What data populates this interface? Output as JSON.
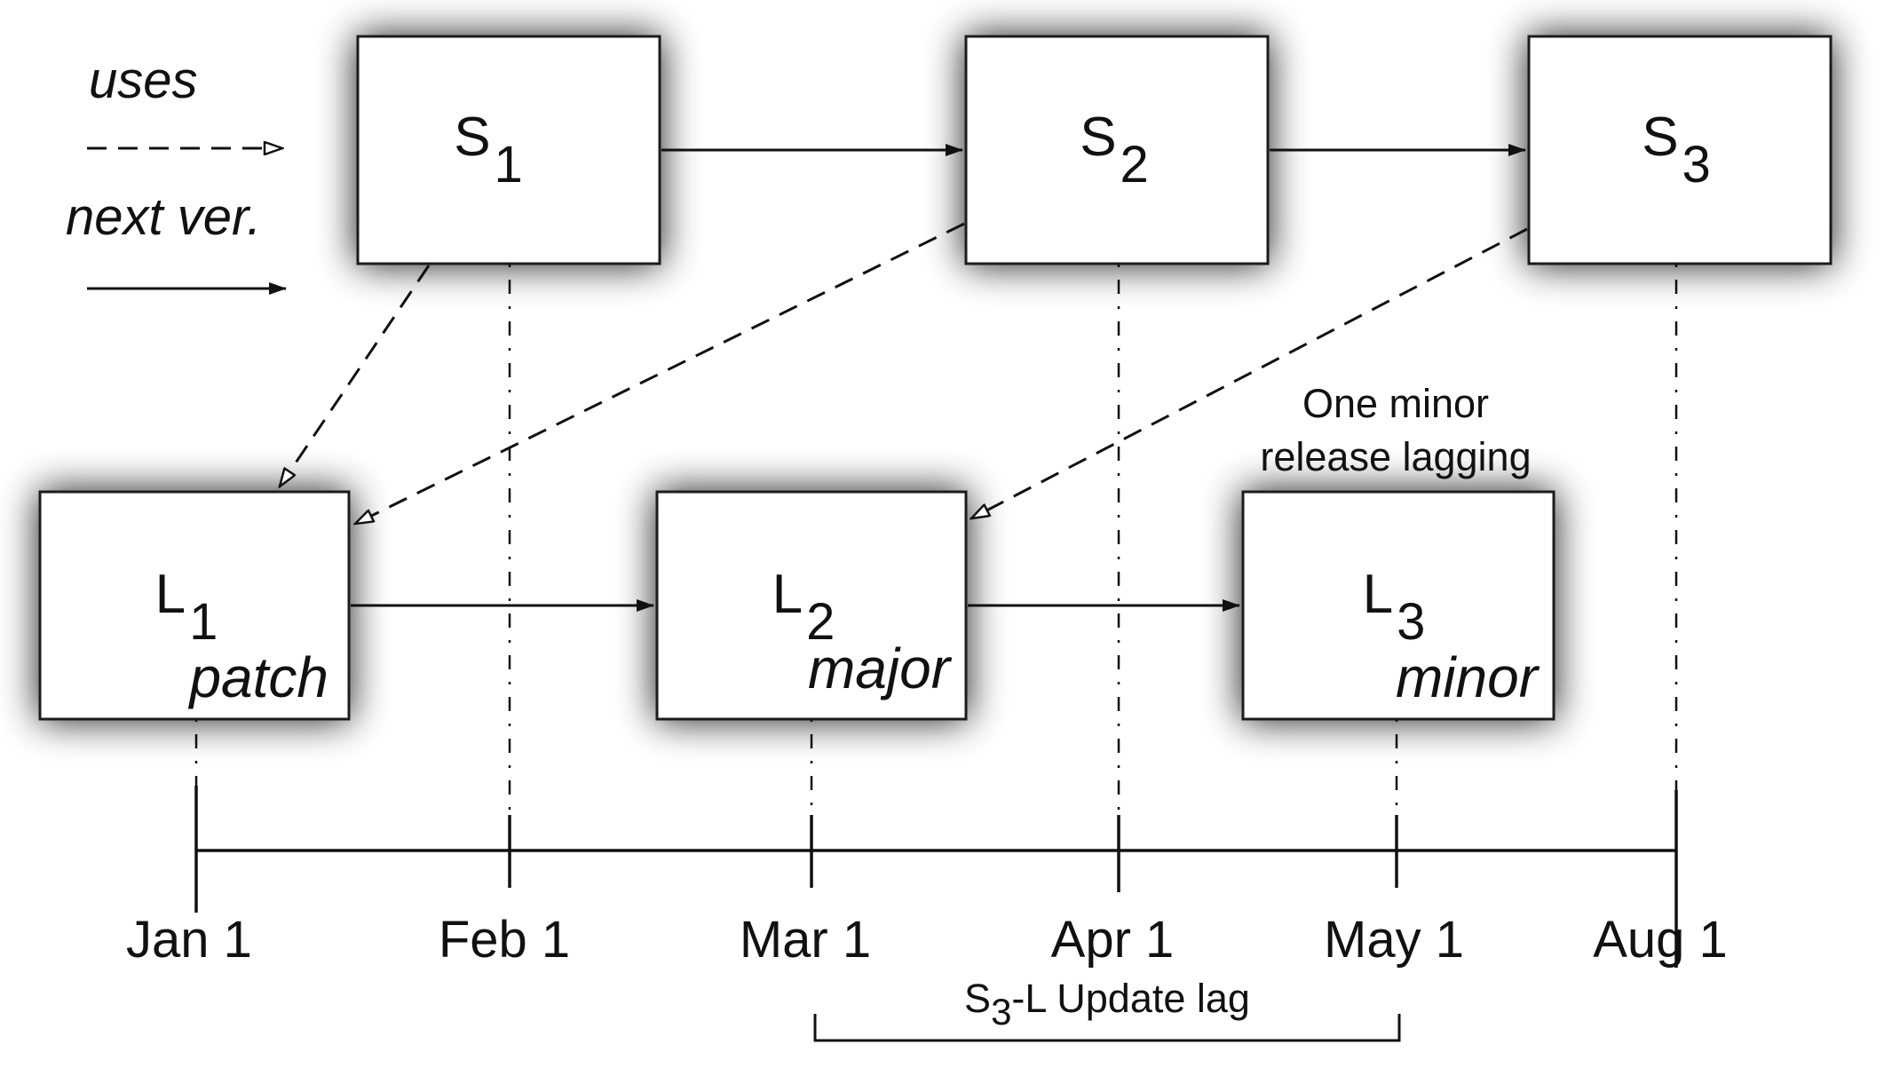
{
  "legend": {
    "uses_label": "uses",
    "next_label": "next ver."
  },
  "nodes": {
    "s1": {
      "main": "S",
      "sub": "1"
    },
    "s2": {
      "main": "S",
      "sub": "2"
    },
    "s3": {
      "main": "S",
      "sub": "3"
    },
    "l1": {
      "main": "L",
      "sub": "1",
      "type": "patch"
    },
    "l2": {
      "main": "L",
      "sub": "2",
      "type": "major"
    },
    "l3": {
      "main": "L",
      "sub": "3",
      "type": "minor"
    }
  },
  "annotation": {
    "line1": "One minor",
    "line2": "release lagging"
  },
  "timeline": {
    "dates": [
      "Jan 1",
      "Feb 1",
      "Mar 1",
      "Apr 1",
      "May 1",
      "Aug 1"
    ]
  },
  "lag": {
    "prefix": "S",
    "sub": "3",
    "suffix": "-L Update lag"
  }
}
